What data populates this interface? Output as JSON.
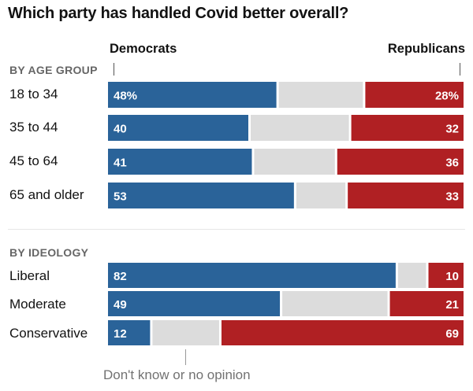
{
  "title": "Which party has handled Covid better overall?",
  "legend": {
    "left": "Democrats",
    "right": "Republicans",
    "middle": "Don't know or no opinion"
  },
  "colors": {
    "democrats": "#2a6399",
    "unsure": "#dcdcdc",
    "republicans": "#b02023"
  },
  "chart_data": {
    "type": "bar",
    "orientation": "horizontal",
    "stacked": true,
    "xlim": [
      0,
      100
    ],
    "sections": [
      {
        "label": "BY AGE GROUP",
        "categories": [
          "18 to 34",
          "35 to 44",
          "45 to 64",
          "65 and older"
        ],
        "value_labels": {
          "Democrats": [
            "48%",
            "40",
            "41",
            "53"
          ],
          "Republicans": [
            "28%",
            "32",
            "36",
            "33"
          ]
        },
        "series": [
          {
            "name": "Democrats",
            "values": [
              48,
              40,
              41,
              53
            ]
          },
          {
            "name": "Don't know or no opinion",
            "values": [
              24,
              28,
              23,
              14
            ]
          },
          {
            "name": "Republicans",
            "values": [
              28,
              32,
              36,
              33
            ]
          }
        ]
      },
      {
        "label": "BY IDEOLOGY",
        "categories": [
          "Liberal",
          "Moderate",
          "Conservative"
        ],
        "value_labels": {
          "Democrats": [
            "82",
            "49",
            "12"
          ],
          "Republicans": [
            "10",
            "21",
            "69"
          ]
        },
        "series": [
          {
            "name": "Democrats",
            "values": [
              82,
              49,
              12
            ]
          },
          {
            "name": "Don't know or no opinion",
            "values": [
              8,
              30,
              19
            ]
          },
          {
            "name": "Republicans",
            "values": [
              10,
              21,
              69
            ]
          }
        ]
      }
    ]
  }
}
